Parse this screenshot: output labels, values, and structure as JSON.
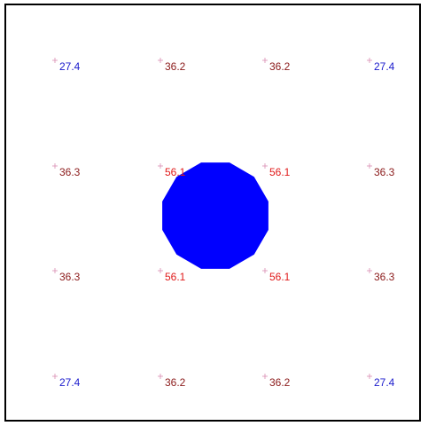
{
  "chart_data": {
    "type": "scatter",
    "grid_values": [
      [
        "27.4",
        "36.2",
        "36.2",
        "27.4"
      ],
      [
        "36.3",
        "56.1",
        "56.1",
        "36.3"
      ],
      [
        "36.3",
        "56.1",
        "56.1",
        "36.3"
      ],
      [
        "27.4",
        "36.2",
        "36.2",
        "27.4"
      ]
    ],
    "value_colors": {
      "27.4": "#1a1acc",
      "36.2": "#8b1a1a",
      "36.3": "#8b1a1a",
      "56.1": "#e01a1a"
    },
    "marker_color": "#d98cb3",
    "shape": {
      "type": "polygon",
      "sides": 12,
      "fill": "#0000ff"
    },
    "border": "#000000"
  }
}
